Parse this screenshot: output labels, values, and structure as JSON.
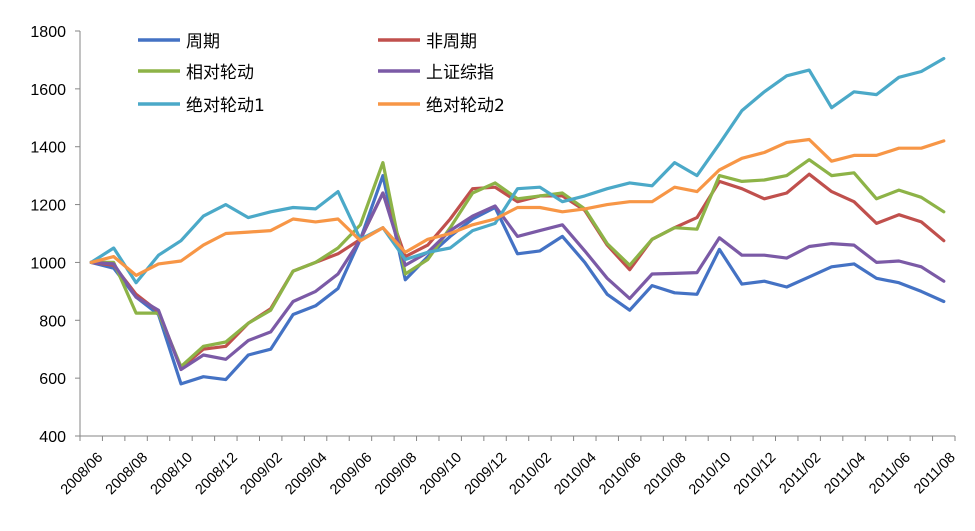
{
  "chart_data": {
    "type": "line",
    "title": "",
    "xlabel": "",
    "ylabel": "",
    "ylim": [
      400,
      1800
    ],
    "yticks": [
      400,
      600,
      800,
      1000,
      1200,
      1400,
      1600,
      1800
    ],
    "grid": false,
    "legend_position": "top-left",
    "x_tick_labels": [
      "2008/06",
      "2008/08",
      "2008/10",
      "2008/12",
      "2009/02",
      "2009/04",
      "2009/06",
      "2009/08",
      "2009/10",
      "2009/12",
      "2010/02",
      "2010/04",
      "2010/06",
      "2010/08",
      "2010/10",
      "2010/12",
      "2011/02",
      "2011/04",
      "2011/06",
      "2011/08"
    ],
    "x": [
      "2008/06",
      "2008/07",
      "2008/08",
      "2008/09",
      "2008/10",
      "2008/11",
      "2008/12",
      "2009/01",
      "2009/02",
      "2009/03",
      "2009/04",
      "2009/05",
      "2009/06",
      "2009/07",
      "2009/08",
      "2009/09",
      "2009/10",
      "2009/11",
      "2009/12",
      "2010/01",
      "2010/02",
      "2010/03",
      "2010/04",
      "2010/05",
      "2010/06",
      "2010/07",
      "2010/08",
      "2010/09",
      "2010/10",
      "2010/11",
      "2010/12",
      "2011/01",
      "2011/02",
      "2011/03",
      "2011/04",
      "2011/05",
      "2011/06",
      "2011/07",
      "2011/08"
    ],
    "series": [
      {
        "name": "周期",
        "color": "#4472c4",
        "values": [
          1000,
          980,
          880,
          820,
          580,
          605,
          595,
          680,
          700,
          820,
          850,
          910,
          1080,
          1300,
          940,
          1020,
          1090,
          1150,
          1190,
          1030,
          1040,
          1090,
          1000,
          890,
          835,
          920,
          895,
          890,
          1045,
          925,
          935,
          915,
          950,
          985,
          995,
          945,
          930,
          900,
          865
        ]
      },
      {
        "name": "非周期",
        "color": "#c0504d",
        "values": [
          1000,
          990,
          890,
          830,
          635,
          700,
          710,
          790,
          840,
          970,
          1000,
          1030,
          1080,
          1240,
          1020,
          1060,
          1150,
          1255,
          1260,
          1210,
          1230,
          1230,
          1180,
          1060,
          975,
          1080,
          1120,
          1155,
          1280,
          1255,
          1220,
          1240,
          1305,
          1245,
          1210,
          1135,
          1165,
          1140,
          1075
        ]
      },
      {
        "name": "相对轮动",
        "color": "#8db347",
        "values": [
          1000,
          1000,
          825,
          825,
          640,
          710,
          725,
          790,
          835,
          970,
          1000,
          1050,
          1130,
          1345,
          960,
          1010,
          1120,
          1240,
          1275,
          1220,
          1230,
          1240,
          1185,
          1065,
          990,
          1080,
          1120,
          1115,
          1300,
          1280,
          1285,
          1300,
          1355,
          1300,
          1310,
          1220,
          1250,
          1225,
          1175
        ]
      },
      {
        "name": "上证综指",
        "color": "#7b5aa6",
        "values": [
          1000,
          995,
          880,
          835,
          630,
          680,
          665,
          730,
          760,
          865,
          900,
          960,
          1080,
          1240,
          990,
          1035,
          1110,
          1160,
          1195,
          1090,
          1110,
          1130,
          1040,
          945,
          875,
          960,
          962,
          965,
          1085,
          1025,
          1025,
          1015,
          1055,
          1065,
          1060,
          1000,
          1005,
          985,
          935
        ]
      },
      {
        "name": "绝对轮动1",
        "color": "#4ba9c8",
        "values": [
          1000,
          1050,
          930,
          1025,
          1075,
          1160,
          1200,
          1155,
          1175,
          1190,
          1185,
          1245,
          1080,
          1120,
          1010,
          1035,
          1050,
          1110,
          1135,
          1255,
          1260,
          1210,
          1230,
          1255,
          1275,
          1265,
          1345,
          1300,
          1410,
          1525,
          1590,
          1645,
          1665,
          1535,
          1590,
          1580,
          1640,
          1660,
          1705
        ]
      },
      {
        "name": "绝对轮动2",
        "color": "#f79646",
        "values": [
          1000,
          1020,
          955,
          995,
          1005,
          1060,
          1100,
          1105,
          1110,
          1150,
          1140,
          1150,
          1075,
          1120,
          1035,
          1080,
          1100,
          1130,
          1150,
          1190,
          1190,
          1175,
          1185,
          1200,
          1210,
          1210,
          1260,
          1245,
          1320,
          1360,
          1380,
          1415,
          1425,
          1350,
          1370,
          1370,
          1395,
          1395,
          1420
        ]
      }
    ]
  }
}
